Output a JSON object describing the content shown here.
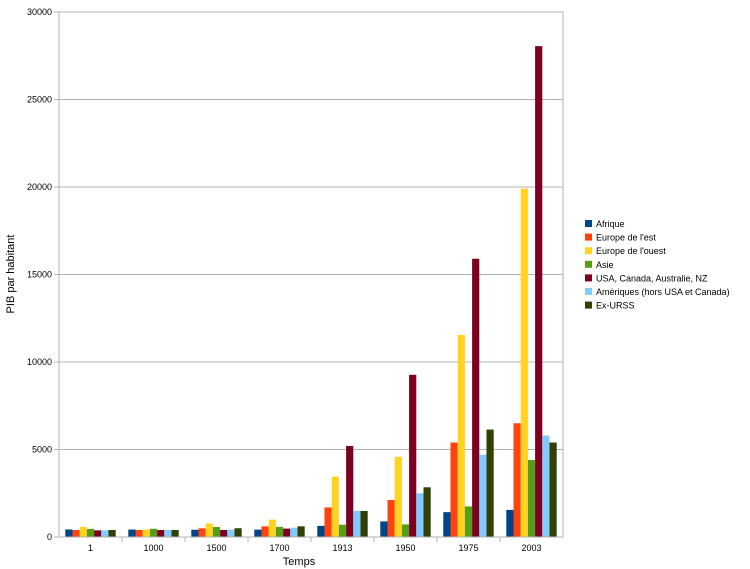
{
  "chart_data": {
    "type": "bar",
    "xlabel": "Temps",
    "ylabel": "PIB par habitant",
    "ylim": [
      0,
      30000
    ],
    "yticks": [
      0,
      5000,
      10000,
      15000,
      20000,
      25000,
      30000
    ],
    "grid": true,
    "legend_position": "right",
    "categories": [
      "1",
      "1000",
      "1500",
      "1700",
      "1913",
      "1950",
      "1975",
      "2003"
    ],
    "series": [
      {
        "name": "Afrique",
        "color": "#004586",
        "values": [
          430,
          425,
          414,
          421,
          637,
          890,
          1420,
          1550
        ]
      },
      {
        "name": "Europe de l'est",
        "color": "#ff420e",
        "values": [
          400,
          400,
          496,
          606,
          1690,
          2110,
          5400,
          6500
        ]
      },
      {
        "name": "Europe de l'ouest",
        "color": "#ffd320",
        "values": [
          580,
          430,
          770,
          990,
          3450,
          4580,
          11550,
          19900
        ]
      },
      {
        "name": "Asie",
        "color": "#579d1c",
        "values": [
          460,
          470,
          570,
          580,
          700,
          720,
          1750,
          4400
        ]
      },
      {
        "name": "USA, Canada, Australie, NZ",
        "color": "#7e0021",
        "values": [
          380,
          400,
          400,
          480,
          5200,
          9270,
          15900,
          28050
        ]
      },
      {
        "name": "Amériques (hors USA et Canada)",
        "color": "#83caff",
        "values": [
          380,
          400,
          420,
          530,
          1500,
          2500,
          4700,
          5800
        ]
      },
      {
        "name": "Ex-URSS",
        "color": "#314004",
        "values": [
          400,
          400,
          500,
          610,
          1490,
          2840,
          6140,
          5400
        ]
      }
    ]
  }
}
